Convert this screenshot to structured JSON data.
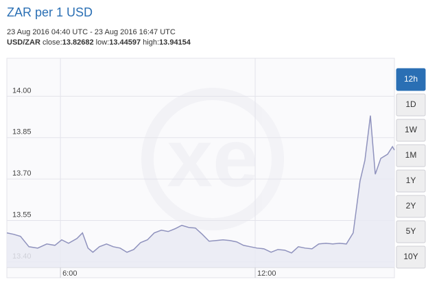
{
  "chart_data": {
    "type": "area",
    "title": "ZAR per 1 USD",
    "subtitle": "23 Aug 2016 04:40 UTC - 23 Aug 2016 16:47 UTC",
    "pair": "USD/ZAR",
    "stats": [
      {
        "label": "close:",
        "value": 13.82682
      },
      {
        "label": "low:",
        "value": 13.44597
      },
      {
        "label": "high:",
        "value": 13.94154
      }
    ],
    "x": [
      4.35,
      4.56,
      4.77,
      5.03,
      5.3,
      5.58,
      5.83,
      6.04,
      6.25,
      6.51,
      6.68,
      6.85,
      7.0,
      7.2,
      7.42,
      7.63,
      7.84,
      8.05,
      8.26,
      8.47,
      8.68,
      8.89,
      9.11,
      9.32,
      9.53,
      9.74,
      9.95,
      10.16,
      10.37,
      10.58,
      10.8,
      11.01,
      11.22,
      11.43,
      11.64,
      11.85,
      12.06,
      12.27,
      12.49,
      12.7,
      12.91,
      13.12,
      13.33,
      13.54,
      13.75,
      13.96,
      14.18,
      14.39,
      14.6,
      14.81,
      15.02,
      15.23,
      15.38,
      15.55,
      15.7,
      15.87,
      16.08,
      16.23,
      16.29
    ],
    "values": [
      13.505,
      13.5,
      13.4925,
      13.455,
      13.45,
      13.465,
      13.46,
      13.48,
      13.4675,
      13.485,
      13.505,
      13.45,
      13.435,
      13.455,
      13.465,
      13.455,
      13.45,
      13.435,
      13.445,
      13.47,
      13.48,
      13.505,
      13.515,
      13.51,
      13.52,
      13.5325,
      13.525,
      13.5225,
      13.5,
      13.475,
      13.4775,
      13.48,
      13.4775,
      13.4725,
      13.46,
      13.455,
      13.45,
      13.4475,
      13.435,
      13.445,
      13.4425,
      13.4325,
      13.455,
      13.45,
      13.4475,
      13.465,
      13.4675,
      13.465,
      13.4675,
      13.465,
      13.505,
      13.6925,
      13.7675,
      13.93,
      13.7175,
      13.775,
      13.79,
      13.8175,
      13.805
    ],
    "color": "#8f92bd",
    "fill": "#e9eaf3",
    "xlim": [
      4.35,
      16.29
    ],
    "ylim": [
      13.38,
      14.1375
    ],
    "xticks": [
      {
        "value": 6,
        "label": "6:00"
      },
      {
        "value": 12,
        "label": "12:00"
      }
    ],
    "yticks": [
      {
        "value": 13.4,
        "label": "13.40"
      },
      {
        "value": 13.55,
        "label": "13.55"
      },
      {
        "value": 13.7,
        "label": "13.70"
      },
      {
        "value": 13.85,
        "label": "13.85"
      },
      {
        "value": 14,
        "label": "14.00"
      }
    ],
    "grid": true,
    "range_buttons": [
      "12h",
      "1D",
      "1W",
      "1M",
      "1Y",
      "2Y",
      "5Y",
      "10Y"
    ],
    "active_button": 0
  }
}
